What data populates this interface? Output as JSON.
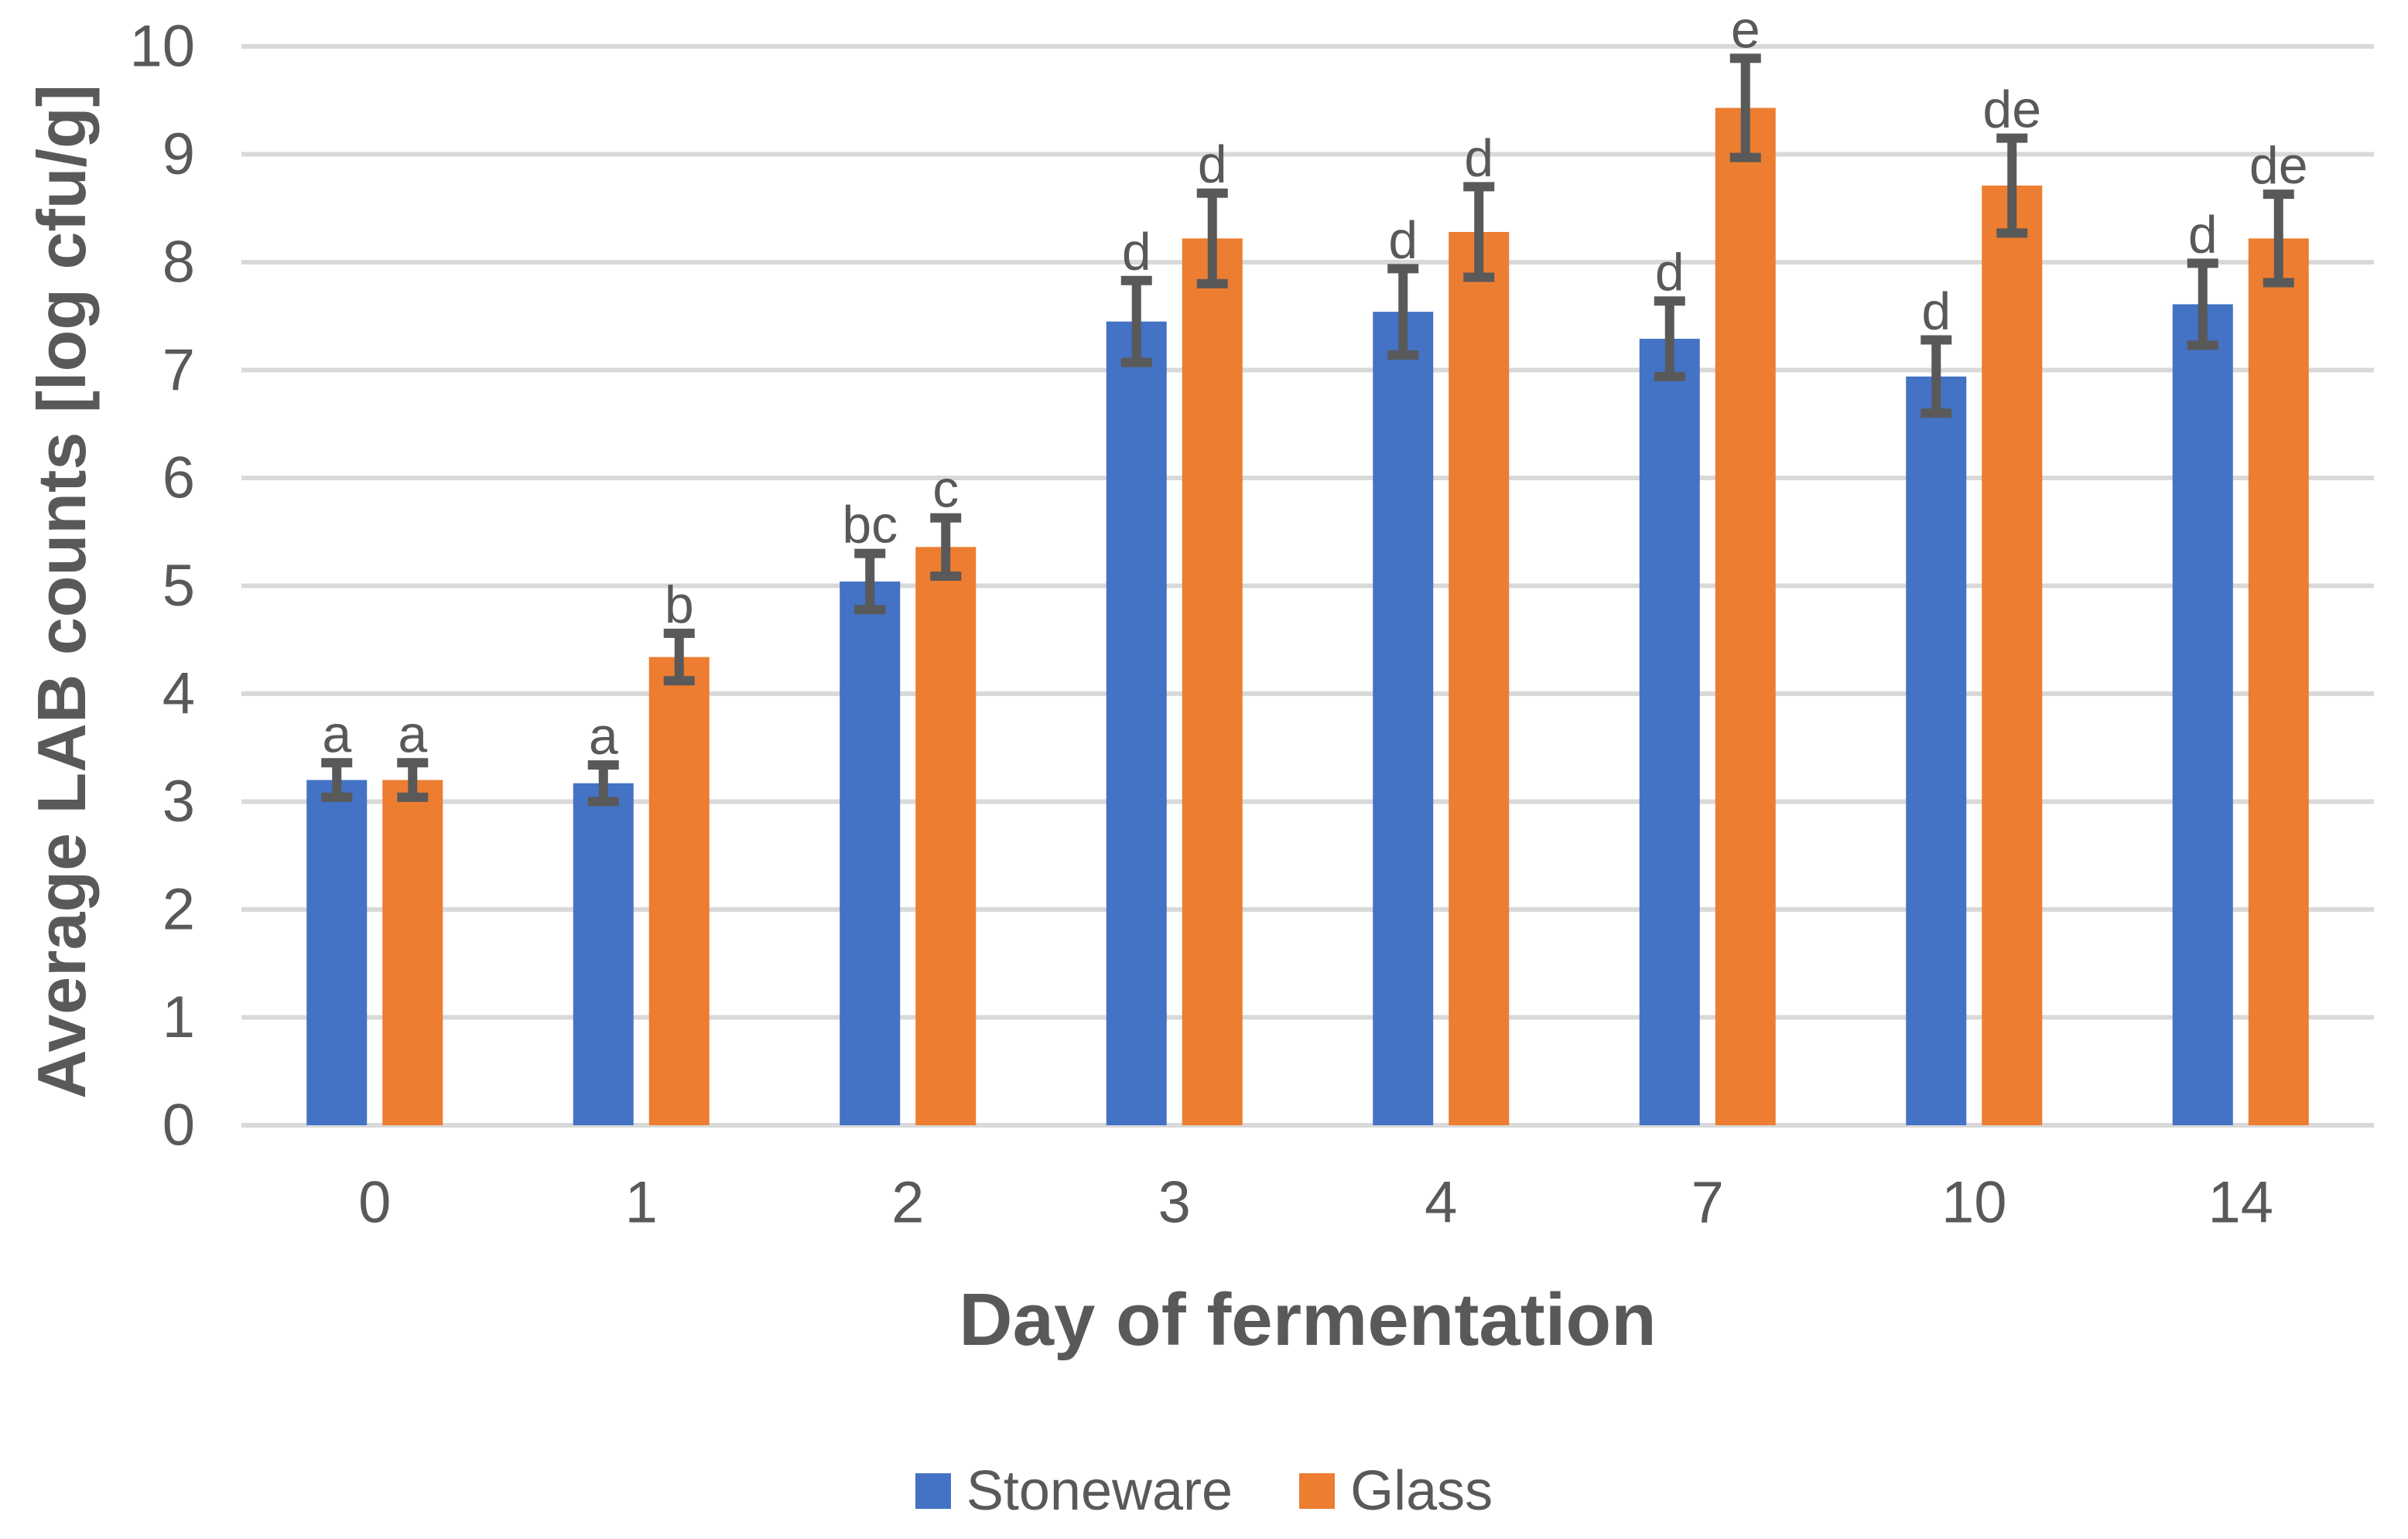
{
  "chart_data": {
    "type": "bar",
    "title": "",
    "xlabel": "Day of fermentation",
    "ylabel": "Average LAB counts [log cfu/g]",
    "categories": [
      "0",
      "1",
      "2",
      "3",
      "4",
      "7",
      "10",
      "14"
    ],
    "yticks": [
      "0",
      "1",
      "2",
      "3",
      "4",
      "5",
      "6",
      "7",
      "8",
      "9",
      "10"
    ],
    "ylim": [
      0,
      10
    ],
    "grid": "horizontal-only",
    "legend_position": "bottom",
    "series": [
      {
        "name": "Stoneware",
        "color": "#4472C4",
        "values": [
          3.2,
          3.17,
          5.04,
          7.45,
          7.54,
          7.29,
          6.94,
          7.61
        ],
        "errors": [
          0.16,
          0.17,
          0.26,
          0.38,
          0.4,
          0.35,
          0.34,
          0.38
        ],
        "letters": [
          "a",
          "a",
          "bc",
          "d",
          "d",
          "d",
          "d",
          "d"
        ]
      },
      {
        "name": "Glass",
        "color": "#ED7D31",
        "values": [
          3.2,
          4.34,
          5.36,
          8.22,
          8.28,
          9.43,
          8.71,
          8.22
        ],
        "errors": [
          0.16,
          0.22,
          0.27,
          0.42,
          0.42,
          0.46,
          0.44,
          0.41
        ],
        "letters": [
          "a",
          "b",
          "c",
          "d",
          "d",
          "e",
          "de",
          "de"
        ]
      }
    ],
    "colors": {
      "gridline": "#D9D9D9",
      "tick_label": "#595959",
      "axis_title": "#595959",
      "error_bar": "#595959",
      "significance_letter": "#595959",
      "background": "#FFFFFF"
    }
  }
}
